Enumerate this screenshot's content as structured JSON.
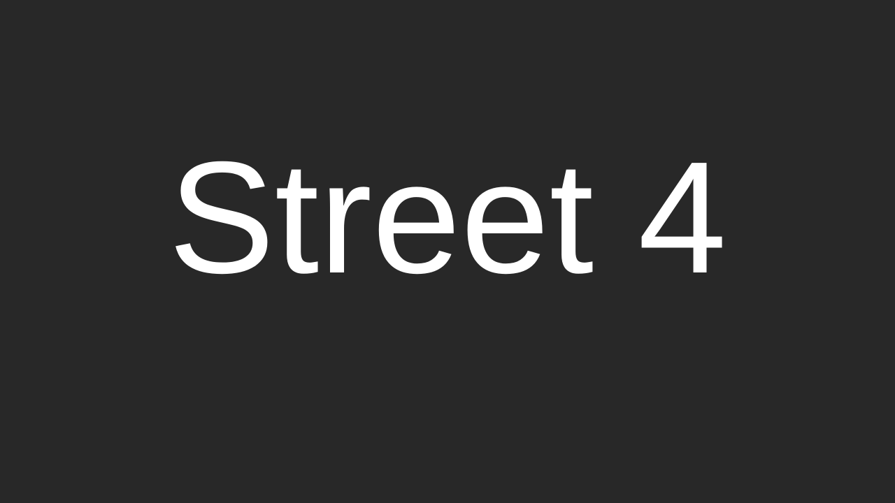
{
  "screen": {
    "title": "Street 4",
    "background_color": "#282828",
    "text_color": "#ffffff"
  }
}
